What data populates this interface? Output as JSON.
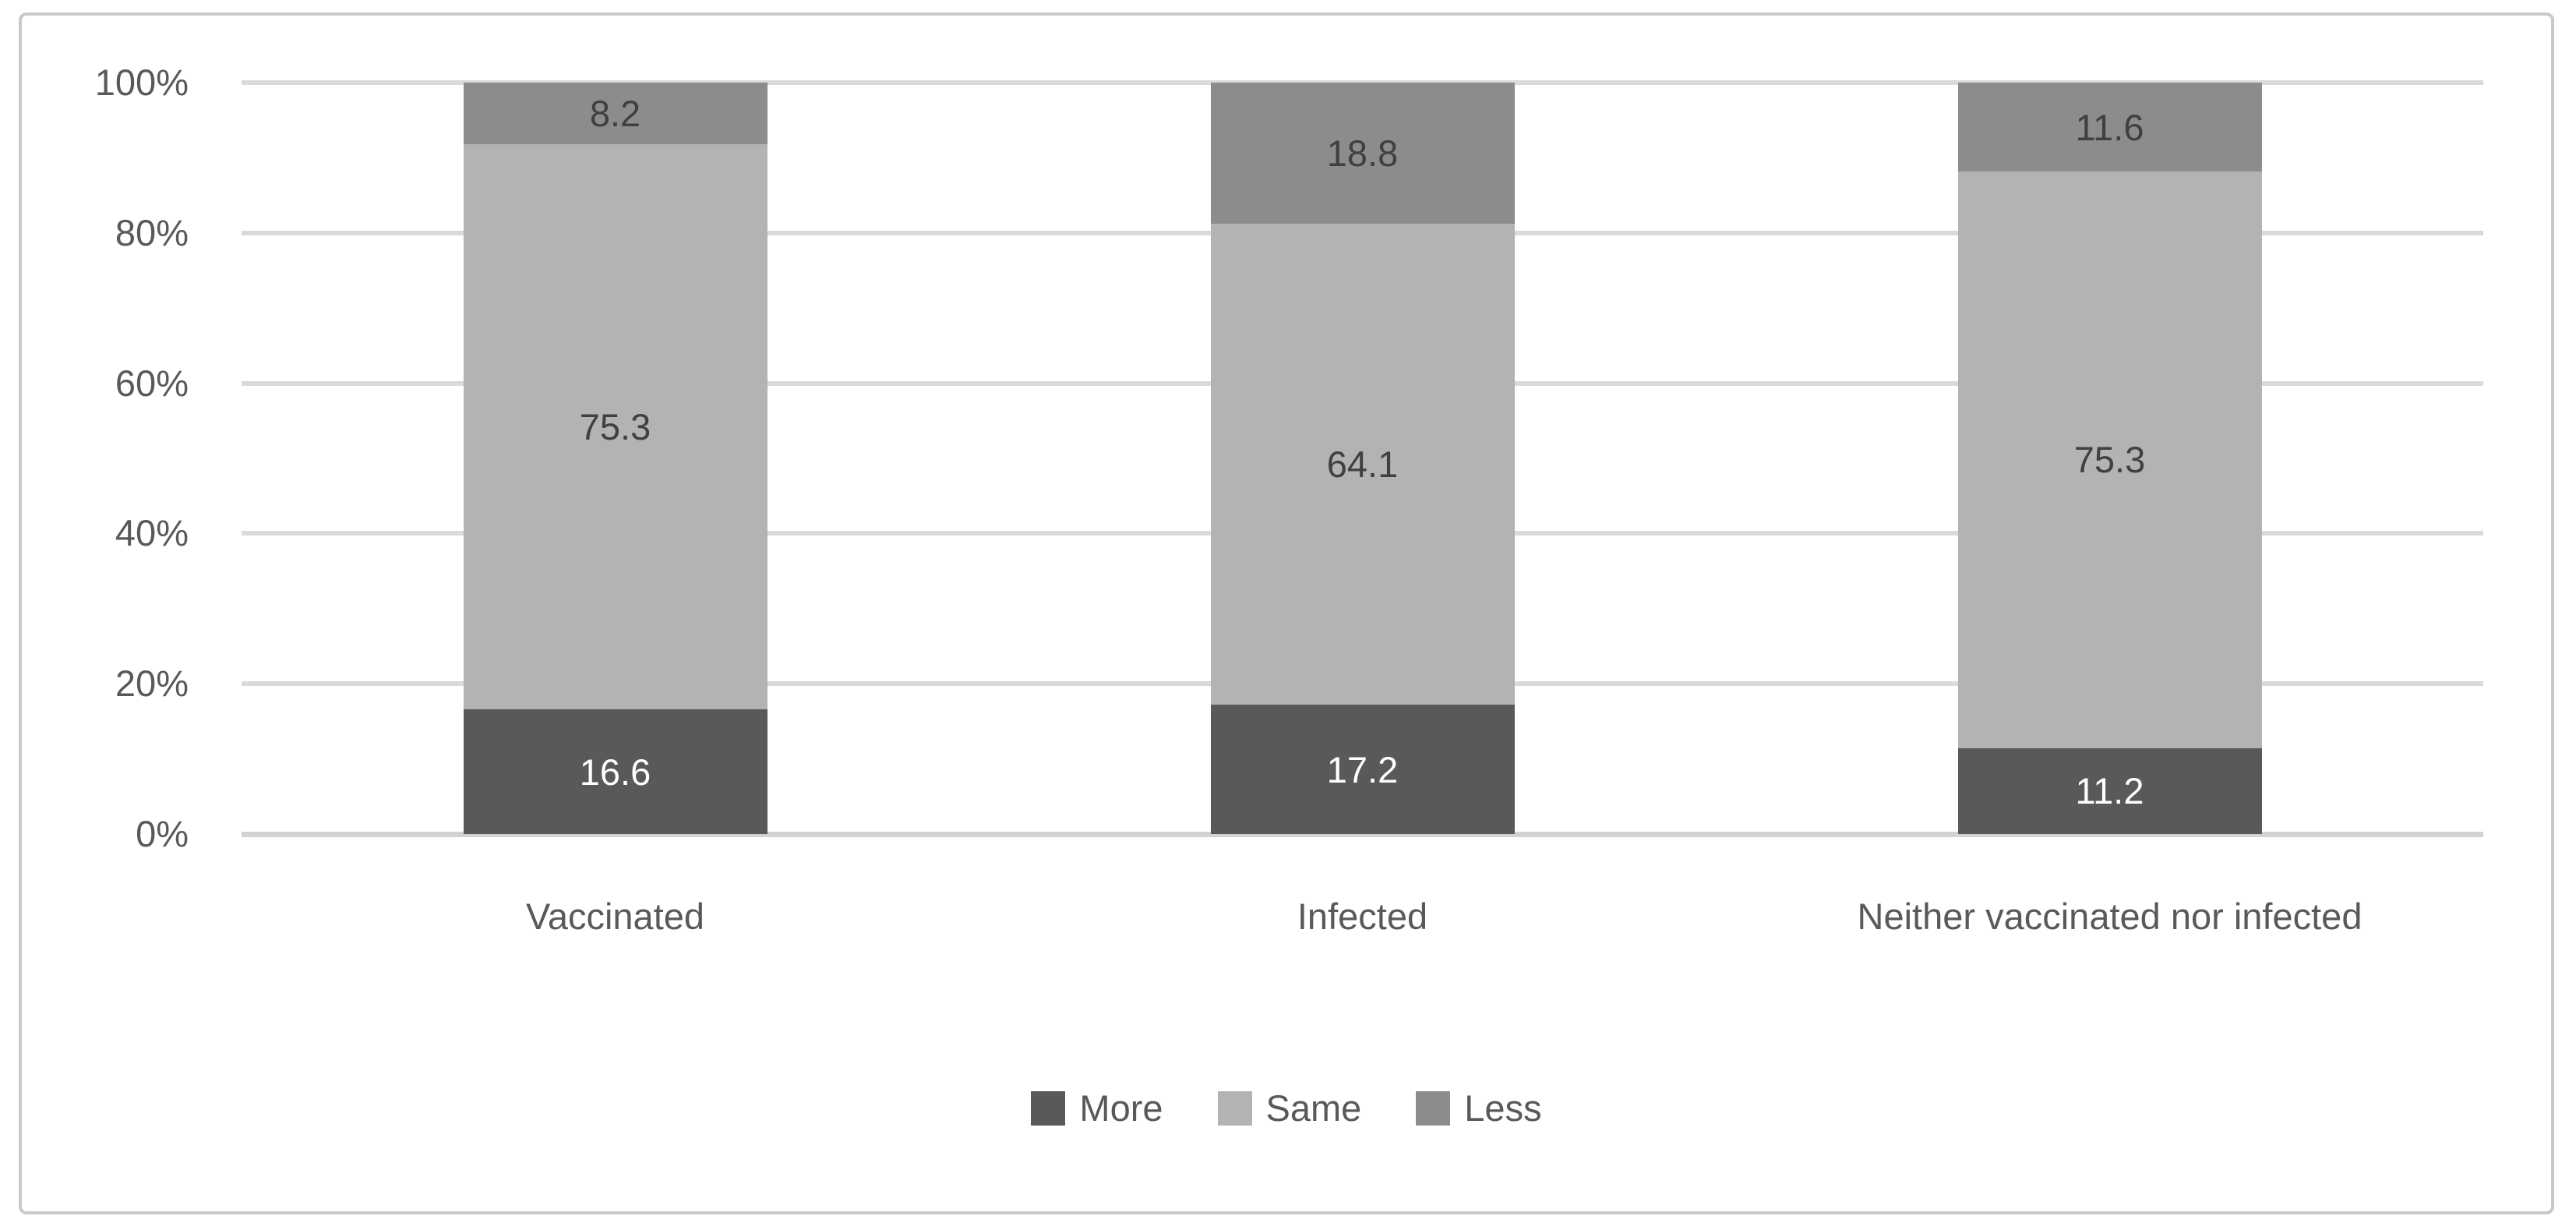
{
  "figure": {
    "background": "#ffffff",
    "frame_color": "#c9c9c9"
  },
  "chart_data": {
    "type": "bar",
    "subtype": "stacked-100-percent-column",
    "title": "",
    "xlabel": "",
    "ylabel": "",
    "categories": [
      "Vaccinated",
      "Infected",
      "Neither vaccinated nor infected"
    ],
    "series": [
      {
        "name": "More",
        "values": [
          16.6,
          17.2,
          11.2
        ],
        "color": "#595959",
        "label_color": "#ffffff"
      },
      {
        "name": "Same",
        "values": [
          75.3,
          64.1,
          75.3
        ],
        "color": "#b3b3b3",
        "label_color": "#404040"
      },
      {
        "name": "Less",
        "values": [
          8.2,
          18.8,
          11.6
        ],
        "color": "#8c8c8c",
        "label_color": "#404040"
      }
    ],
    "stack_order_bottom_to_top": [
      "More",
      "Same",
      "Less"
    ],
    "y_ticks": [
      {
        "value": 0,
        "label": "0%"
      },
      {
        "value": 20,
        "label": "20%"
      },
      {
        "value": 40,
        "label": "40%"
      },
      {
        "value": 60,
        "label": "60%"
      },
      {
        "value": 80,
        "label": "80%"
      },
      {
        "value": 100,
        "label": "100%"
      }
    ],
    "ylim": [
      0,
      100
    ],
    "grid": true,
    "legend_position": "bottom",
    "legend_entries": [
      "More",
      "Same",
      "Less"
    ],
    "gridline_color": "#dadada",
    "axis_line_color": "#d2d2d2",
    "text_color": "#595959"
  }
}
